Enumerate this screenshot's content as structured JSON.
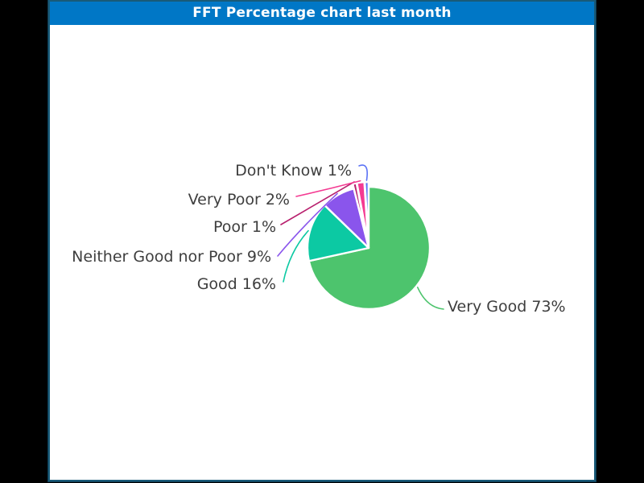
{
  "window": {
    "title": "FFT Percentage chart last month"
  },
  "theme": {
    "header_bg": "#0077c6",
    "header_text": "#ffffff",
    "panel_bg": "#ffffff",
    "panel_border": "#195a78",
    "stage_bg": "#000000",
    "label_color": "#3e3e3e",
    "slice_stroke": "#ffffff"
  },
  "chart_data": {
    "type": "pie",
    "title": "FFT Percentage chart last month",
    "unit": "%",
    "legend": "none",
    "label_style": "outside-callout",
    "categories": [
      "Very Good",
      "Good",
      "Neither Good nor Poor",
      "Poor",
      "Very Poor",
      "Don't Know"
    ],
    "values": [
      73,
      16,
      9,
      1,
      2,
      1
    ],
    "slices": [
      {
        "key": "very-good",
        "category": "Very Good",
        "value": 73,
        "label": "Very Good 73%",
        "color": "#4dc46d"
      },
      {
        "key": "good",
        "category": "Good",
        "value": 16,
        "label": "Good 16%",
        "color": "#0cc9a3"
      },
      {
        "key": "neither-good-nor-poor",
        "category": "Neither Good nor Poor",
        "value": 9,
        "label": "Neither Good nor Poor 9%",
        "color": "#8a55ec"
      },
      {
        "key": "poor",
        "category": "Poor",
        "value": 1,
        "label": "Poor 1%",
        "color": "#b8206e"
      },
      {
        "key": "very-poor",
        "category": "Very Poor",
        "value": 2,
        "label": "Very Poor 2%",
        "color": "#f43a92"
      },
      {
        "key": "dont-know",
        "category": "Don't Know",
        "value": 1,
        "label": "Don't Know 1%",
        "color": "#5b72f5"
      }
    ]
  }
}
